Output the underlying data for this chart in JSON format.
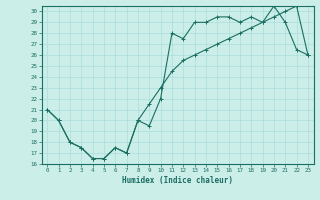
{
  "xlabel": "Humidex (Indice chaleur)",
  "bg_color": "#cceee8",
  "line_color": "#1a6e62",
  "grid_color": "#aadddd",
  "ylim": [
    16,
    30.5
  ],
  "xlim": [
    -0.5,
    23.5
  ],
  "yticks": [
    16,
    17,
    18,
    19,
    20,
    21,
    22,
    23,
    24,
    25,
    26,
    27,
    28,
    29,
    30
  ],
  "xticks": [
    0,
    1,
    2,
    3,
    4,
    5,
    6,
    7,
    8,
    9,
    10,
    11,
    12,
    13,
    14,
    15,
    16,
    17,
    18,
    19,
    20,
    21,
    22,
    23
  ],
  "line1_x": [
    0,
    1,
    2,
    3,
    4,
    5,
    6,
    7,
    8,
    9,
    10,
    11,
    12,
    13,
    14,
    15,
    16,
    17,
    18,
    19,
    20,
    21,
    22,
    23
  ],
  "line1_y": [
    21,
    20,
    18,
    17.5,
    16.5,
    16.5,
    17.5,
    17,
    20,
    19.5,
    22,
    28,
    27.5,
    29,
    29,
    29.5,
    29.5,
    29,
    29.5,
    29,
    30.5,
    29,
    26.5,
    26
  ],
  "line2_x": [
    0,
    1,
    2,
    3,
    4,
    5,
    6,
    7,
    8,
    9,
    10,
    11,
    12,
    13,
    14,
    15,
    16,
    17,
    18,
    19,
    20,
    21,
    22,
    23
  ],
  "line2_y": [
    21,
    20,
    18,
    17.5,
    16.5,
    16.5,
    17.5,
    17,
    20,
    21.5,
    23,
    24.5,
    25.5,
    26,
    26.5,
    27,
    27.5,
    28,
    28.5,
    29,
    29.5,
    30,
    30.5,
    26
  ]
}
